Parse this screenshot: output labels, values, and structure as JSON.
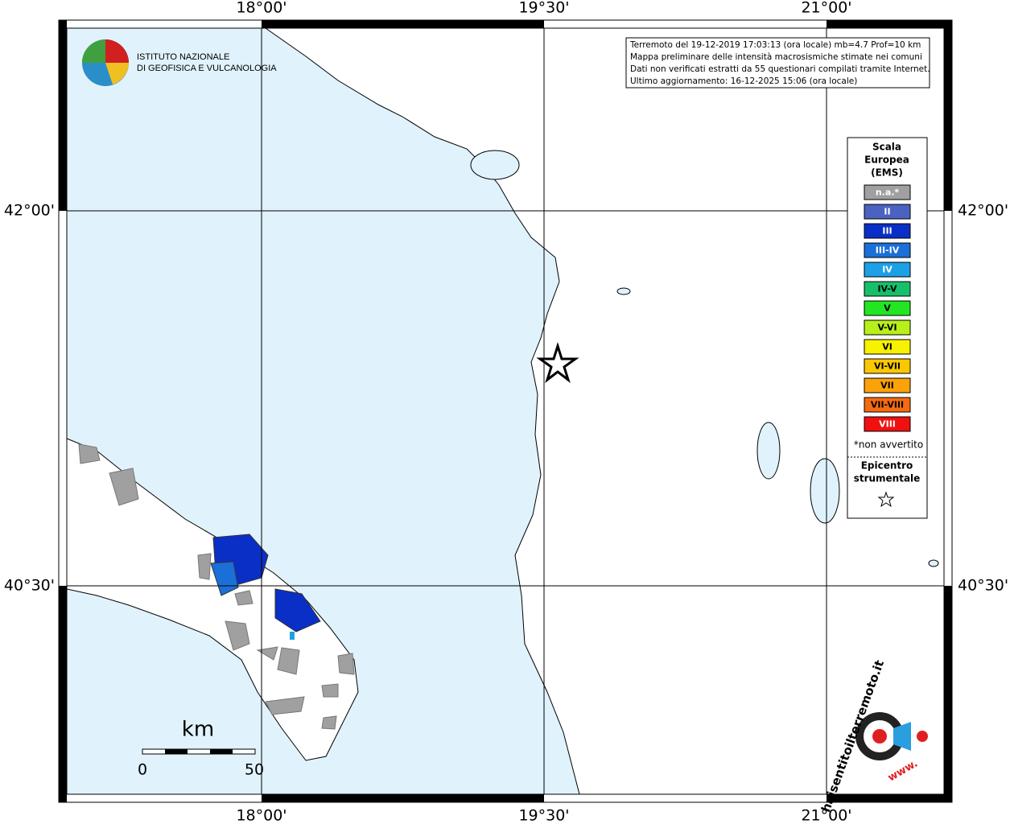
{
  "map": {
    "grid_longitudes": [
      "18°00'",
      "19°30'",
      "21°00'"
    ],
    "grid_latitudes": [
      "42°00'",
      "40°30'"
    ]
  },
  "info_box": {
    "lines": [
      "Terremoto del 19-12-2019 17:03:13 (ora locale) mb=4.7 Prof=10 km",
      "Mappa preliminare delle intensità macrosismiche stimate nei comuni",
      "Dati non verificati estratti da 55 questionari compilati tramite Internet.",
      "Ultimo aggiornamento: 16-12-2025 15:06 (ora locale)"
    ]
  },
  "logo": {
    "lines": [
      "ISTITUTO NAZIONALE",
      "DI GEOFISICA E VULCANOLOGIA"
    ]
  },
  "legend": {
    "title_lines": [
      "Scala",
      "Europea",
      "(EMS)"
    ],
    "items": [
      {
        "label": "n.a.*",
        "color": "#a0a0a0",
        "text_color": "#ffffff"
      },
      {
        "label": "II",
        "color": "#4b62c0",
        "text_color": "#ffffff"
      },
      {
        "label": "III",
        "color": "#0a2fc6",
        "text_color": "#ffffff"
      },
      {
        "label": "III-IV",
        "color": "#1a6fd8",
        "text_color": "#ffffff"
      },
      {
        "label": "IV",
        "color": "#1ca0e6",
        "text_color": "#ffffff"
      },
      {
        "label": "IV-V",
        "color": "#16c06a",
        "text_color": "#000000"
      },
      {
        "label": "V",
        "color": "#22e622",
        "text_color": "#000000"
      },
      {
        "label": "V-VI",
        "color": "#b8f01a",
        "text_color": "#000000"
      },
      {
        "label": "VI",
        "color": "#f6f200",
        "text_color": "#000000"
      },
      {
        "label": "VI-VII",
        "color": "#fbc800",
        "text_color": "#000000"
      },
      {
        "label": "VII",
        "color": "#fba10a",
        "text_color": "#000000"
      },
      {
        "label": "VII-VIII",
        "color": "#f66a10",
        "text_color": "#000000"
      },
      {
        "label": "VIII",
        "color": "#f01010",
        "text_color": "#ffffff"
      }
    ],
    "note": "*non avvertito",
    "epicenter_lines": [
      "Epicentro",
      "strumentale"
    ]
  },
  "scale_bar": {
    "unit": "km",
    "ticks": [
      "0",
      "50"
    ]
  },
  "badge": {
    "prefix": "www.",
    "text": "haisentitoilterremoto.it"
  }
}
